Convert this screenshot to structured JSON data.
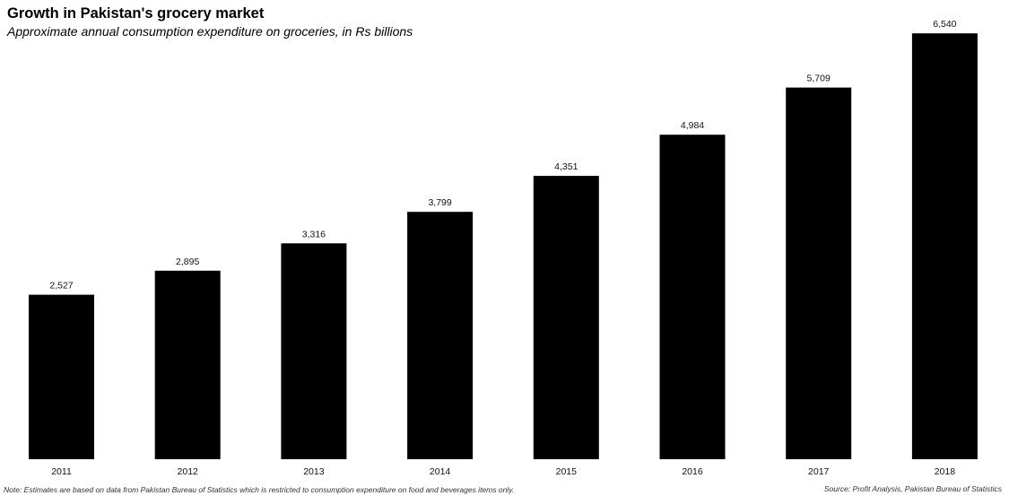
{
  "chart_data": {
    "type": "bar",
    "title": "Growth in Pakistan's grocery market",
    "subtitle": "Approximate annual consumption expenditure on groceries, in Rs billions",
    "categories": [
      "2011",
      "2012",
      "2013",
      "2014",
      "2015",
      "2016",
      "2017",
      "2018"
    ],
    "values": [
      2527,
      2895,
      3316,
      3799,
      4351,
      4984,
      5709,
      6540
    ],
    "value_labels": [
      "2,527",
      "2,895",
      "3,316",
      "3,799",
      "4,351",
      "4,984",
      "5,709",
      "6,540"
    ],
    "xlabel": "",
    "ylabel": "",
    "ylim": [
      0,
      6750
    ],
    "grid": false,
    "legend": "none",
    "bar_color": "#000000",
    "note": "Note: Estimates are based on data from Pakistan Bureau of Statistics which is restricted to consumption expenditure on food and beverages items only.",
    "source": "Source: Profit Analysis, Pakistan Bureau of Statistics"
  }
}
